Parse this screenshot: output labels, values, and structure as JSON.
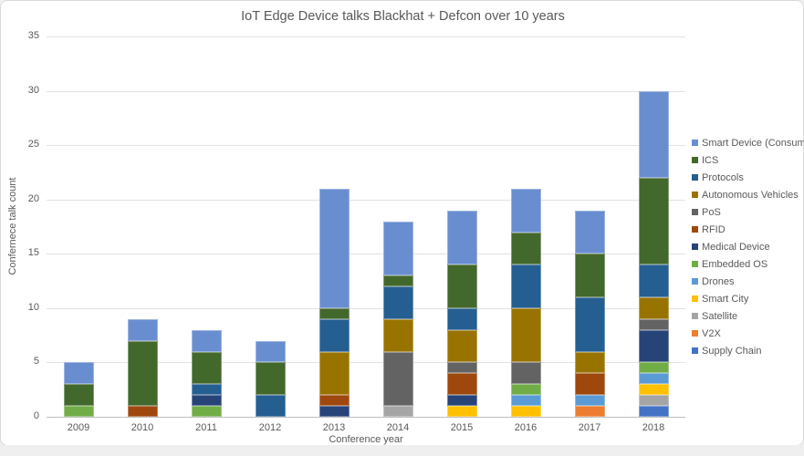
{
  "chart_data": {
    "type": "bar",
    "stacked": true,
    "title": "IoT Edge Device talks Blackhat + Defcon over 10 years",
    "xlabel": "Conference year",
    "ylabel": "Confernece talk count",
    "ylim": [
      0,
      35
    ],
    "yticks": [
      0,
      5,
      10,
      15,
      20,
      25,
      30,
      35
    ],
    "grid": true,
    "legend_position": "right",
    "categories": [
      "2009",
      "2010",
      "2011",
      "2012",
      "2013",
      "2014",
      "2015",
      "2016",
      "2017",
      "2018"
    ],
    "totals": [
      5,
      9,
      8,
      7,
      21,
      18,
      19,
      21,
      19,
      30
    ],
    "series": [
      {
        "name": "Supply Chain",
        "color": "#4472C4",
        "values": [
          0,
          0,
          0,
          0,
          0,
          0,
          0,
          0,
          0,
          1
        ]
      },
      {
        "name": "V2X",
        "color": "#ED7D31",
        "values": [
          0,
          0,
          0,
          0,
          0,
          0,
          0,
          0,
          1,
          0
        ]
      },
      {
        "name": "Satellite",
        "color": "#A5A5A5",
        "values": [
          0,
          0,
          0,
          0,
          0,
          1,
          0,
          0,
          0,
          1
        ]
      },
      {
        "name": "Smart City",
        "color": "#FFC000",
        "values": [
          0,
          0,
          0,
          0,
          0,
          0,
          1,
          1,
          0,
          1
        ]
      },
      {
        "name": "Drones",
        "color": "#5B9BD5",
        "values": [
          0,
          0,
          0,
          0,
          0,
          0,
          0,
          1,
          1,
          1
        ]
      },
      {
        "name": "Embedded OS",
        "color": "#70AD47",
        "values": [
          1,
          0,
          1,
          0,
          0,
          0,
          0,
          1,
          0,
          1
        ]
      },
      {
        "name": "Medical Device",
        "color": "#264478",
        "values": [
          0,
          0,
          1,
          0,
          1,
          0,
          1,
          0,
          0,
          3
        ]
      },
      {
        "name": "RFID",
        "color": "#9E480E",
        "values": [
          0,
          1,
          0,
          0,
          1,
          0,
          2,
          0,
          2,
          0
        ]
      },
      {
        "name": "PoS",
        "color": "#636363",
        "values": [
          0,
          0,
          0,
          0,
          0,
          5,
          1,
          2,
          0,
          1
        ]
      },
      {
        "name": "Autonomous Vehicles",
        "color": "#997300",
        "values": [
          0,
          0,
          0,
          0,
          4,
          3,
          3,
          5,
          2,
          2
        ]
      },
      {
        "name": "Protocols",
        "color": "#255E91",
        "values": [
          0,
          0,
          1,
          2,
          3,
          3,
          2,
          4,
          5,
          3
        ]
      },
      {
        "name": "ICS",
        "color": "#43682B",
        "values": [
          2,
          6,
          3,
          3,
          1,
          1,
          4,
          3,
          4,
          8
        ]
      },
      {
        "name": "Smart Device (Consumer)",
        "color": "#698ED0",
        "values": [
          2,
          2,
          2,
          2,
          11,
          5,
          5,
          4,
          4,
          8
        ]
      }
    ],
    "legend_top_to_bottom": [
      "Smart Device (Consumer)",
      "ICS",
      "Protocols",
      "Autonomous Vehicles",
      "PoS",
      "RFID",
      "Medical Device",
      "Embedded OS",
      "Drones",
      "Smart City",
      "Satellite",
      "V2X",
      "Supply Chain"
    ]
  }
}
